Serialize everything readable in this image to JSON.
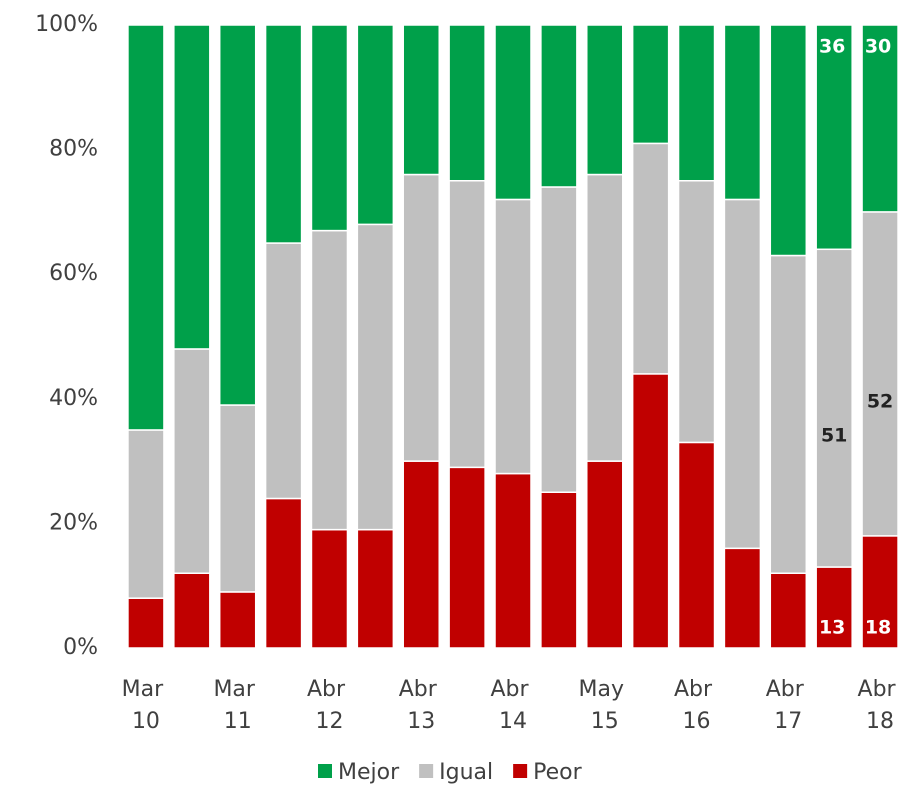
{
  "chart_data": {
    "type": "stacked_bar",
    "categories": [
      "Mar 10",
      null,
      "Mar 11",
      null,
      "Abr 12",
      null,
      "Abr 13",
      null,
      "Abr 14",
      null,
      "May 15",
      null,
      "Abr 16",
      null,
      "Abr 17",
      null,
      "Abr 18"
    ],
    "series": [
      {
        "name": "Mejor",
        "color": "#00a04a",
        "values": [
          65,
          52,
          61,
          35,
          33,
          32,
          24,
          25,
          28,
          26,
          24,
          19,
          25,
          28,
          37,
          36,
          30
        ],
        "value_labels": [
          null,
          null,
          null,
          null,
          null,
          null,
          null,
          null,
          null,
          null,
          null,
          null,
          null,
          null,
          null,
          "36",
          "30"
        ]
      },
      {
        "name": "Igual",
        "color": "#c0c0c0",
        "values": [
          27,
          36,
          30,
          41,
          48,
          49,
          46,
          46,
          44,
          49,
          46,
          37,
          42,
          56,
          51,
          51,
          52
        ],
        "value_labels": [
          null,
          null,
          null,
          null,
          null,
          null,
          null,
          null,
          null,
          null,
          null,
          null,
          null,
          null,
          null,
          "51",
          "52"
        ]
      },
      {
        "name": "Peor",
        "color": "#c00000",
        "values": [
          8,
          12,
          9,
          24,
          19,
          19,
          30,
          29,
          28,
          25,
          30,
          44,
          33,
          16,
          12,
          13,
          18
        ],
        "value_labels": [
          null,
          null,
          null,
          null,
          null,
          null,
          null,
          null,
          null,
          null,
          null,
          null,
          null,
          null,
          null,
          "13",
          "18"
        ]
      }
    ],
    "ylim": [
      0,
      100
    ],
    "yticks": [
      {
        "value": 0,
        "label": "0%"
      },
      {
        "value": 20,
        "label": "20%"
      },
      {
        "value": 40,
        "label": "40%"
      },
      {
        "value": 60,
        "label": "60%"
      },
      {
        "value": 80,
        "label": "80%"
      },
      {
        "value": 100,
        "label": "100%"
      }
    ],
    "legend": "bottom"
  }
}
